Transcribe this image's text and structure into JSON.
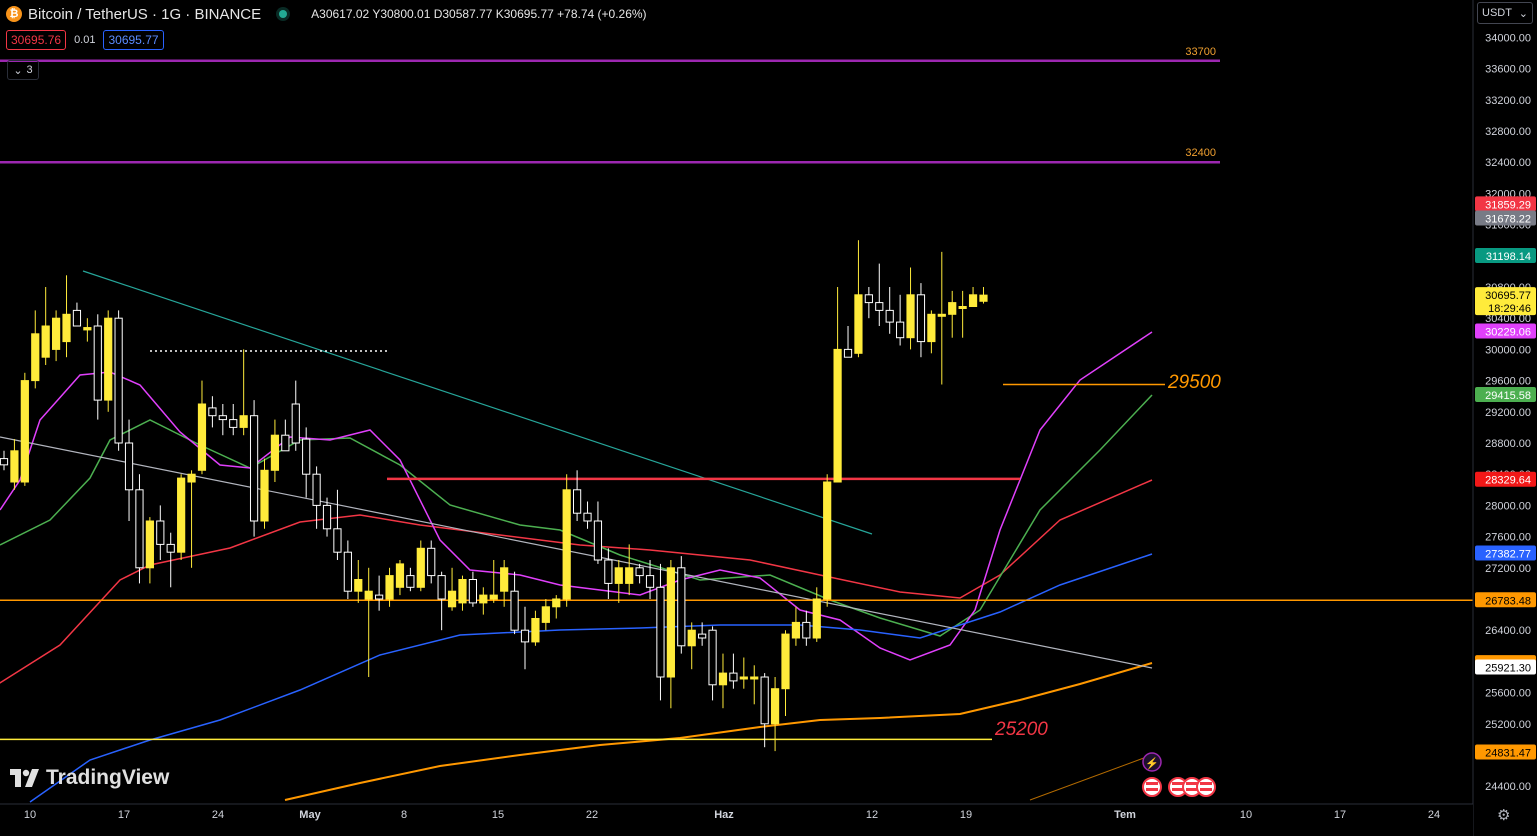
{
  "header": {
    "symbol": "Bitcoin / TetherUS · 1G · BINANCE",
    "ohlc": "A30617.02 Y30800.01 D30587.77 K30695.77 +78.74 (+0.26%)",
    "sell_price": "30695.76",
    "spread": "0.01",
    "buy_price": "30695.77",
    "indicator_count": "3",
    "currency": "USDT",
    "coin_glyph": "₿"
  },
  "branding": {
    "name": "TradingView"
  },
  "chart_data": {
    "type": "candlestick",
    "title": "Bitcoin / TetherUS · 1G · BINANCE",
    "ylim": [
      24150,
      34200
    ],
    "y_ticks": [
      24400,
      24800,
      25200,
      25600,
      26000,
      26400,
      26800,
      27200,
      27600,
      28000,
      28400,
      28800,
      29200,
      29600,
      30000,
      30400,
      30800,
      31200,
      31600,
      32000,
      32400,
      32800,
      33200,
      33600,
      34000
    ],
    "x_ticks": [
      "10",
      "17",
      "24",
      "May",
      "8",
      "15",
      "22",
      "Haz",
      "12",
      "19",
      "Tem",
      "10",
      "17",
      "24"
    ],
    "x_tick_bold": [
      "May",
      "Haz",
      "Tem"
    ],
    "candles": [
      {
        "o": 28600,
        "h": 28700,
        "l": 28450,
        "c": 28520
      },
      {
        "o": 28300,
        "h": 28850,
        "l": 28200,
        "c": 28700
      },
      {
        "o": 28300,
        "h": 29700,
        "l": 28250,
        "c": 29600
      },
      {
        "o": 29600,
        "h": 30500,
        "l": 29500,
        "c": 30200
      },
      {
        "o": 29900,
        "h": 30800,
        "l": 29800,
        "c": 30300
      },
      {
        "o": 30000,
        "h": 30500,
        "l": 29850,
        "c": 30400
      },
      {
        "o": 30100,
        "h": 30950,
        "l": 29900,
        "c": 30450
      },
      {
        "o": 30500,
        "h": 30600,
        "l": 30300,
        "c": 30300
      },
      {
        "o": 30250,
        "h": 30400,
        "l": 30100,
        "c": 30280
      },
      {
        "o": 30300,
        "h": 30450,
        "l": 29100,
        "c": 29350
      },
      {
        "o": 29350,
        "h": 30500,
        "l": 29200,
        "c": 30400
      },
      {
        "o": 30400,
        "h": 30500,
        "l": 28700,
        "c": 28800
      },
      {
        "o": 28800,
        "h": 29100,
        "l": 27800,
        "c": 28200
      },
      {
        "o": 28200,
        "h": 28400,
        "l": 27000,
        "c": 27200
      },
      {
        "o": 27200,
        "h": 27850,
        "l": 27000,
        "c": 27800
      },
      {
        "o": 27800,
        "h": 28000,
        "l": 27300,
        "c": 27500
      },
      {
        "o": 27500,
        "h": 27650,
        "l": 26950,
        "c": 27400
      },
      {
        "o": 27400,
        "h": 28400,
        "l": 27300,
        "c": 28350
      },
      {
        "o": 28300,
        "h": 28450,
        "l": 27200,
        "c": 28400
      },
      {
        "o": 28450,
        "h": 29600,
        "l": 28400,
        "c": 29300
      },
      {
        "o": 29250,
        "h": 29400,
        "l": 29000,
        "c": 29150
      },
      {
        "o": 29150,
        "h": 29300,
        "l": 28900,
        "c": 29100
      },
      {
        "o": 29100,
        "h": 29300,
        "l": 28900,
        "c": 29000
      },
      {
        "o": 29000,
        "h": 30000,
        "l": 28900,
        "c": 29150
      },
      {
        "o": 29150,
        "h": 29350,
        "l": 27600,
        "c": 27800
      },
      {
        "o": 27800,
        "h": 28600,
        "l": 27700,
        "c": 28450
      },
      {
        "o": 28450,
        "h": 29100,
        "l": 28300,
        "c": 28900
      },
      {
        "o": 28900,
        "h": 29100,
        "l": 28700,
        "c": 28700
      },
      {
        "o": 29300,
        "h": 29600,
        "l": 28700,
        "c": 28800
      },
      {
        "o": 28850,
        "h": 29000,
        "l": 28100,
        "c": 28400
      },
      {
        "o": 28400,
        "h": 28500,
        "l": 27700,
        "c": 28000
      },
      {
        "o": 28000,
        "h": 28100,
        "l": 27600,
        "c": 27700
      },
      {
        "o": 27700,
        "h": 28200,
        "l": 27300,
        "c": 27400
      },
      {
        "o": 27400,
        "h": 27550,
        "l": 26800,
        "c": 26900
      },
      {
        "o": 26900,
        "h": 27300,
        "l": 26750,
        "c": 27050
      },
      {
        "o": 26800,
        "h": 27200,
        "l": 25800,
        "c": 26900
      },
      {
        "o": 26850,
        "h": 27100,
        "l": 26650,
        "c": 26800
      },
      {
        "o": 26800,
        "h": 27200,
        "l": 26700,
        "c": 27100
      },
      {
        "o": 26950,
        "h": 27300,
        "l": 26850,
        "c": 27250
      },
      {
        "o": 27100,
        "h": 27200,
        "l": 26900,
        "c": 26950
      },
      {
        "o": 26950,
        "h": 27550,
        "l": 26900,
        "c": 27450
      },
      {
        "o": 27450,
        "h": 27550,
        "l": 27000,
        "c": 27100
      },
      {
        "o": 27100,
        "h": 27150,
        "l": 26400,
        "c": 26800
      },
      {
        "o": 26700,
        "h": 27200,
        "l": 26650,
        "c": 26900
      },
      {
        "o": 26750,
        "h": 27100,
        "l": 26650,
        "c": 27050
      },
      {
        "o": 27050,
        "h": 27150,
        "l": 26700,
        "c": 26750
      },
      {
        "o": 26750,
        "h": 26950,
        "l": 26600,
        "c": 26850
      },
      {
        "o": 26800,
        "h": 27300,
        "l": 26750,
        "c": 26850
      },
      {
        "o": 26900,
        "h": 27300,
        "l": 26700,
        "c": 27200
      },
      {
        "o": 26900,
        "h": 27150,
        "l": 26350,
        "c": 26400
      },
      {
        "o": 26400,
        "h": 26700,
        "l": 25900,
        "c": 26250
      },
      {
        "o": 26250,
        "h": 26650,
        "l": 26200,
        "c": 26550
      },
      {
        "o": 26500,
        "h": 26800,
        "l": 26400,
        "c": 26700
      },
      {
        "o": 26700,
        "h": 26850,
        "l": 26550,
        "c": 26800
      },
      {
        "o": 26800,
        "h": 28400,
        "l": 26700,
        "c": 28200
      },
      {
        "o": 28200,
        "h": 28450,
        "l": 27800,
        "c": 27900
      },
      {
        "o": 27900,
        "h": 28050,
        "l": 27700,
        "c": 27800
      },
      {
        "o": 27800,
        "h": 28050,
        "l": 27250,
        "c": 27300
      },
      {
        "o": 27300,
        "h": 27450,
        "l": 26800,
        "c": 27000
      },
      {
        "o": 27000,
        "h": 27300,
        "l": 26750,
        "c": 27200
      },
      {
        "o": 27000,
        "h": 27500,
        "l": 26850,
        "c": 27200
      },
      {
        "o": 27200,
        "h": 27250,
        "l": 27000,
        "c": 27100
      },
      {
        "o": 27100,
        "h": 27300,
        "l": 26800,
        "c": 26950
      },
      {
        "o": 26950,
        "h": 27250,
        "l": 25500,
        "c": 25800
      },
      {
        "o": 25800,
        "h": 27300,
        "l": 25400,
        "c": 27200
      },
      {
        "o": 27200,
        "h": 27350,
        "l": 26100,
        "c": 26200
      },
      {
        "o": 26200,
        "h": 26500,
        "l": 25900,
        "c": 26400
      },
      {
        "o": 26350,
        "h": 26500,
        "l": 26200,
        "c": 26300
      },
      {
        "o": 26400,
        "h": 26450,
        "l": 25500,
        "c": 25700
      },
      {
        "o": 25700,
        "h": 26100,
        "l": 25400,
        "c": 25850
      },
      {
        "o": 25850,
        "h": 26100,
        "l": 25650,
        "c": 25750
      },
      {
        "o": 25800,
        "h": 26050,
        "l": 25650,
        "c": 25800
      },
      {
        "o": 25800,
        "h": 25950,
        "l": 25450,
        "c": 25800
      },
      {
        "o": 25800,
        "h": 25850,
        "l": 24900,
        "c": 25200
      },
      {
        "o": 25200,
        "h": 25800,
        "l": 24850,
        "c": 25650
      },
      {
        "o": 25650,
        "h": 26400,
        "l": 25300,
        "c": 26350
      },
      {
        "o": 26300,
        "h": 26700,
        "l": 26200,
        "c": 26500
      },
      {
        "o": 26500,
        "h": 26650,
        "l": 26200,
        "c": 26300
      },
      {
        "o": 26300,
        "h": 26950,
        "l": 26250,
        "c": 26800
      },
      {
        "o": 26800,
        "h": 28400,
        "l": 26700,
        "c": 28300
      },
      {
        "o": 28300,
        "h": 30800,
        "l": 28300,
        "c": 30000
      },
      {
        "o": 30000,
        "h": 30300,
        "l": 29900,
        "c": 29900
      },
      {
        "o": 29950,
        "h": 31400,
        "l": 29900,
        "c": 30700
      },
      {
        "o": 30700,
        "h": 30800,
        "l": 30400,
        "c": 30600
      },
      {
        "o": 30600,
        "h": 31100,
        "l": 30300,
        "c": 30500
      },
      {
        "o": 30500,
        "h": 30800,
        "l": 30200,
        "c": 30350
      },
      {
        "o": 30350,
        "h": 30700,
        "l": 30050,
        "c": 30150
      },
      {
        "o": 30150,
        "h": 31050,
        "l": 30000,
        "c": 30700
      },
      {
        "o": 30700,
        "h": 30850,
        "l": 29900,
        "c": 30100
      },
      {
        "o": 30100,
        "h": 30500,
        "l": 29950,
        "c": 30450
      },
      {
        "o": 30450,
        "h": 31250,
        "l": 29550,
        "c": 30450
      },
      {
        "o": 30450,
        "h": 30750,
        "l": 30150,
        "c": 30600
      },
      {
        "o": 30550,
        "h": 30750,
        "l": 30150,
        "c": 30550
      },
      {
        "o": 30550,
        "h": 30800,
        "l": 30550,
        "c": 30700
      },
      {
        "o": 30617.02,
        "h": 30800.01,
        "l": 30587.77,
        "c": 30695.77
      }
    ],
    "horizontal_levels": [
      {
        "value": 33700,
        "label": "33700",
        "color": "#9c27b0",
        "label_color": "#f0a030"
      },
      {
        "value": 32400,
        "label": "32400",
        "color": "#9c27b0",
        "label_color": "#f0a030"
      },
      {
        "value": 26783.48,
        "label": "",
        "color": "#ff9800",
        "label_color": ""
      },
      {
        "value": 25000,
        "label": "",
        "color": "#ffeb3b",
        "label_color": ""
      },
      {
        "value": 28340,
        "label": "",
        "color": "#f23645",
        "label_color": ""
      },
      {
        "value": 29550,
        "label": "",
        "color": "#ff9800",
        "label_color": ""
      }
    ],
    "annotations": [
      {
        "text": "29500",
        "color": "#ff9800"
      },
      {
        "text": "25200",
        "color": "#f23645"
      }
    ],
    "price_tags": [
      {
        "value": 31859.29,
        "label": "31859.29",
        "bg": "#f23645",
        "fg": "#ffffff"
      },
      {
        "value": 31678.22,
        "label": "31678.22",
        "bg": "#787b86",
        "fg": "#ffffff"
      },
      {
        "value": 31198.14,
        "label": "31198.14",
        "bg": "#089981",
        "fg": "#ffffff"
      },
      {
        "value": 30695.77,
        "label": "30695.77",
        "sub": "18:29:46",
        "bg": "#ffeb3b",
        "fg": "#000000"
      },
      {
        "value": 30229.06,
        "label": "30229.06",
        "bg": "#e040fb",
        "fg": "#ffffff"
      },
      {
        "value": 29415.58,
        "label": "29415.58",
        "bg": "#4caf50",
        "fg": "#ffffff"
      },
      {
        "value": 28329.64,
        "label": "28329.64",
        "bg": "#f21818",
        "fg": "#ffffff"
      },
      {
        "value": 27382.77,
        "label": "27382.77",
        "bg": "#2962ff",
        "fg": "#ffffff"
      },
      {
        "value": 26783.48,
        "label": "26783.48",
        "bg": "#ff9800",
        "fg": "#000000"
      },
      {
        "value": 25978.49,
        "label": "25978.49",
        "bg": "#ff9800",
        "fg": "#000000"
      },
      {
        "value": 25921.3,
        "label": "25921.30",
        "bg": "#ffffff",
        "fg": "#000000"
      },
      {
        "value": 24831.47,
        "label": "24831.47",
        "bg": "#ff9800",
        "fg": "#000000"
      }
    ],
    "colors": {
      "bull": "#ffeb3b",
      "bear": "#ffffff",
      "ma_fast": "#e040fb",
      "ma_mid": "#4caf50",
      "ma_slow": "#f23645",
      "ma_long": "#2962ff",
      "ma_longest": "#ff9800"
    }
  }
}
